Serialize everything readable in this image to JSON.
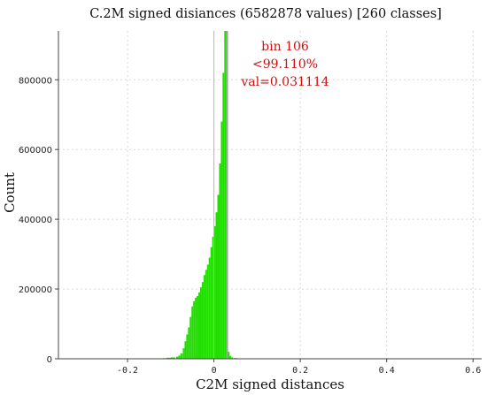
{
  "chart_data": {
    "type": "bar",
    "title": "C.2M signed disiances (6582878 values) [260 classes]",
    "xlabel": "C2M signed distances",
    "ylabel": "Count",
    "xlim": [
      -0.36,
      0.62
    ],
    "ylim": [
      0,
      940000
    ],
    "x_ticks": [
      {
        "value": -0.2,
        "label": "-0.2"
      },
      {
        "value": 0,
        "label": "0"
      },
      {
        "value": 0.2,
        "label": "0.2"
      },
      {
        "value": 0.4,
        "label": "0.4"
      },
      {
        "value": 0.6,
        "label": "0.6"
      }
    ],
    "y_ticks": [
      {
        "value": 0,
        "label": "0"
      },
      {
        "value": 200000,
        "label": "200000"
      },
      {
        "value": 400000,
        "label": "400000"
      },
      {
        "value": 600000,
        "label": "600000"
      },
      {
        "value": 800000,
        "label": "800000"
      }
    ],
    "grid": true,
    "bar_color": "#22dd00",
    "bar_highlight_color": "#99ee88",
    "marker_color": "#a0a0a0",
    "marker_x": 0.031114,
    "zero_line_x": 0,
    "bins": [
      {
        "x": -0.115,
        "v": 2000
      },
      {
        "x": -0.105,
        "v": 3000
      },
      {
        "x": -0.095,
        "v": 4000
      },
      {
        "x": -0.085,
        "v": 6000
      },
      {
        "x": -0.08,
        "v": 9000
      },
      {
        "x": -0.075,
        "v": 15000
      },
      {
        "x": -0.07,
        "v": 30000
      },
      {
        "x": -0.066,
        "v": 50000
      },
      {
        "x": -0.062,
        "v": 70000
      },
      {
        "x": -0.058,
        "v": 90000
      },
      {
        "x": -0.054,
        "v": 120000
      },
      {
        "x": -0.05,
        "v": 150000
      },
      {
        "x": -0.046,
        "v": 165000
      },
      {
        "x": -0.042,
        "v": 175000
      },
      {
        "x": -0.038,
        "v": 180000
      },
      {
        "x": -0.034,
        "v": 190000
      },
      {
        "x": -0.03,
        "v": 205000
      },
      {
        "x": -0.026,
        "v": 220000
      },
      {
        "x": -0.022,
        "v": 240000
      },
      {
        "x": -0.018,
        "v": 255000
      },
      {
        "x": -0.014,
        "v": 270000
      },
      {
        "x": -0.01,
        "v": 290000
      },
      {
        "x": -0.006,
        "v": 320000
      },
      {
        "x": -0.002,
        "v": 350000
      },
      {
        "x": 0.002,
        "v": 380000
      },
      {
        "x": 0.006,
        "v": 420000
      },
      {
        "x": 0.01,
        "v": 470000
      },
      {
        "x": 0.014,
        "v": 560000
      },
      {
        "x": 0.018,
        "v": 680000
      },
      {
        "x": 0.022,
        "v": 820000
      },
      {
        "x": 0.026,
        "v": 940000
      },
      {
        "x": 0.03,
        "v": 940000
      },
      {
        "x": 0.034,
        "v": 20000
      },
      {
        "x": 0.038,
        "v": 8000
      },
      {
        "x": 0.042,
        "v": 4000
      },
      {
        "x": 0.05,
        "v": 2000
      },
      {
        "x": 0.06,
        "v": 1000
      }
    ],
    "annotations": [
      {
        "text": "bin 106"
      },
      {
        "text": "<99.110%"
      },
      {
        "text": "val=0.031114"
      }
    ],
    "annotation_color": "#cc1111"
  }
}
